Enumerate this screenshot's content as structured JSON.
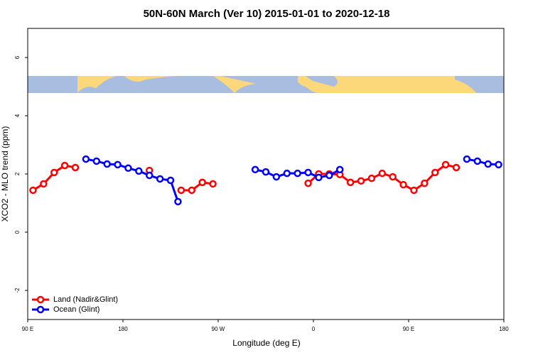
{
  "chart_data": {
    "type": "line",
    "title": "50N-60N March (Ver 10)   2015-01-01 to 2020-12-18",
    "x_label": "Longitude (deg E)",
    "y_label": "XCO2 - MLO trend (ppm)",
    "xlim": [
      90,
      540
    ],
    "xticks": [
      {
        "value": 90,
        "label": "90 E"
      },
      {
        "value": 180,
        "label": "180"
      },
      {
        "value": 270,
        "label": "90 W"
      },
      {
        "value": 360,
        "label": "0"
      },
      {
        "value": 450,
        "label": "90 E"
      },
      {
        "value": 540,
        "label": "180"
      }
    ],
    "ylim": [
      -3,
      7
    ],
    "yticks": [
      -2,
      0,
      2,
      4,
      6
    ],
    "legend": "bottom-left",
    "series": [
      {
        "name": "Land (Nadir&Glint)",
        "color": "#ff0000",
        "x": [
          95,
          105,
          115,
          125,
          135,
          null,
          205,
          null,
          235,
          245,
          255,
          265,
          null,
          355,
          365,
          375,
          385,
          395,
          405,
          415,
          425,
          435,
          445,
          455,
          465,
          475,
          485,
          495
        ],
        "values": [
          1.44,
          1.66,
          2.05,
          2.29,
          2.22,
          null,
          2.12,
          null,
          1.44,
          1.44,
          1.71,
          1.66,
          null,
          1.68,
          2.0,
          2.0,
          1.98,
          1.71,
          1.76,
          1.85,
          2.02,
          1.9,
          1.63,
          1.44,
          1.68,
          2.05,
          2.32,
          2.22
        ]
      },
      {
        "name": "Ocean (Glint)",
        "color": "#0000ff",
        "x": [
          145,
          155,
          165,
          175,
          185,
          195,
          205,
          215,
          225,
          232,
          null,
          305,
          315,
          325,
          335,
          345,
          355,
          365,
          375,
          385,
          null,
          505,
          515,
          525,
          535
        ],
        "values": [
          2.51,
          2.44,
          2.34,
          2.32,
          2.2,
          2.1,
          1.95,
          1.83,
          1.78,
          1.05,
          null,
          2.15,
          2.07,
          1.9,
          2.02,
          2.02,
          2.05,
          1.88,
          1.95,
          2.15,
          null,
          2.51,
          2.44,
          2.34,
          2.32
        ]
      }
    ]
  }
}
